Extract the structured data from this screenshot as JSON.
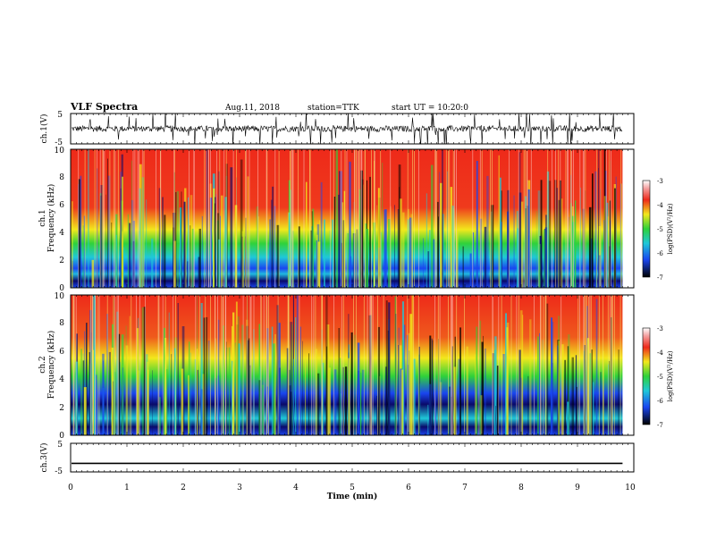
{
  "header": {
    "title": "VLF Spectra",
    "date": "Aug.11, 2018",
    "station": "station=TTK",
    "start": "start UT =  10:20:0"
  },
  "chart_data": [
    {
      "type": "line",
      "panel": "ch1-waveform",
      "ylabel": "ch.1(V)",
      "ylim": [
        -5,
        5
      ],
      "yticks": [
        "5",
        "-5"
      ],
      "baseline": 0,
      "amplitude_band": [
        -1,
        1
      ],
      "duration_min": 9.8
    },
    {
      "type": "heatmap",
      "panel": "ch1-spectrogram",
      "ylabel": "ch.1",
      "ylabel2": "Frequency (kHz)",
      "ylim": [
        0,
        10
      ],
      "yticks": [
        "0",
        "2",
        "4",
        "6",
        "8",
        "10"
      ],
      "colorbar": {
        "label": "log(PSD)(V²/Hz)",
        "range": [
          -7,
          -3
        ],
        "ticks": [
          "-3",
          "-4",
          "-5",
          "-6",
          "-7"
        ]
      }
    },
    {
      "type": "heatmap",
      "panel": "ch2-spectrogram",
      "ylabel": "ch.2",
      "ylabel2": "Frequency (kHz)",
      "ylim": [
        0,
        10
      ],
      "yticks": [
        "0",
        "2",
        "4",
        "6",
        "8",
        "10"
      ],
      "colorbar": {
        "label": "log(PSD)(V²/Hz)",
        "range": [
          -7,
          -3
        ],
        "ticks": [
          "-3",
          "-4",
          "-5",
          "-6",
          "-7"
        ]
      }
    },
    {
      "type": "line",
      "panel": "ch3-waveform",
      "ylabel": "ch.3(V)",
      "ylim": [
        -5,
        5
      ],
      "yticks": [
        "5",
        "-5"
      ],
      "values_constant": -2
    }
  ],
  "xaxis": {
    "label": "Time (min)",
    "ticks": [
      "0",
      "1",
      "2",
      "3",
      "4",
      "5",
      "6",
      "7",
      "8",
      "9",
      "10"
    ],
    "range": [
      0,
      10
    ]
  },
  "colors": {
    "red": "#ee2a1a",
    "yellow": "#f2e81c",
    "green": "#2fd23a",
    "cyan": "#1fc8d8",
    "blue": "#1a46f0",
    "darkblue": "#0a0a6a",
    "black": "#000000"
  }
}
